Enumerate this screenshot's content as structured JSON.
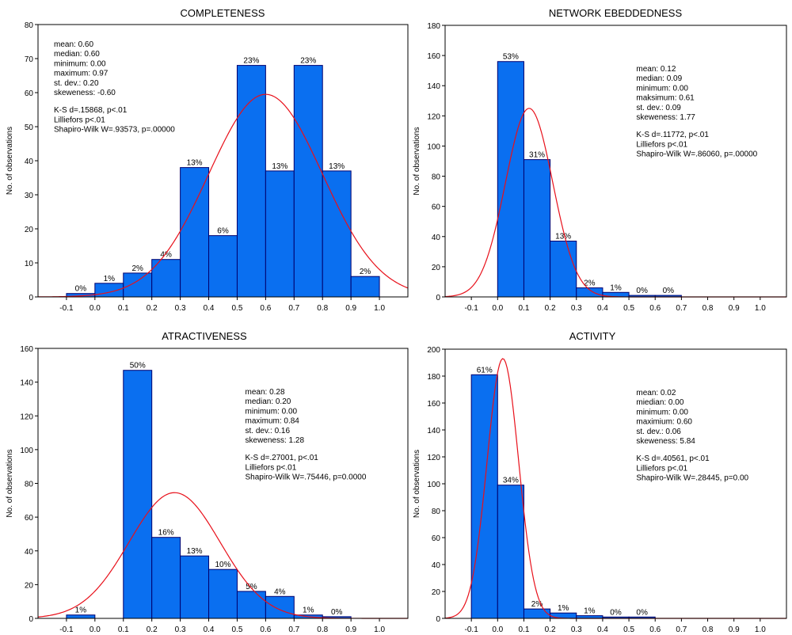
{
  "chart_data": [
    {
      "type": "histogram",
      "title": "COMPLETENESS",
      "ylabel": "No. of observations",
      "xlim": [
        -0.2,
        1.1
      ],
      "ylim": [
        0,
        80
      ],
      "yticks": [
        0,
        10,
        20,
        30,
        40,
        50,
        60,
        70,
        80
      ],
      "xticks": [
        -0.1,
        0.0,
        0.1,
        0.2,
        0.3,
        0.4,
        0.5,
        0.6,
        0.7,
        0.8,
        0.9,
        1.0
      ],
      "xtick_labels": [
        "-0.1",
        "0.0",
        "0.1",
        "0.2",
        "0.3",
        "0.4",
        "0.5",
        "0.6",
        "0.7",
        "0.8",
        "0.9",
        "1.0"
      ],
      "bin_start": -0.1,
      "bin_width": 0.1,
      "values": [
        1,
        4,
        7,
        11,
        38,
        18,
        68,
        37,
        68,
        37,
        6
      ],
      "bar_labels": [
        "0%",
        "1%",
        "2%",
        "4%",
        "13%",
        "6%",
        "23%",
        "13%",
        "23%",
        "13%",
        "2%"
      ],
      "normal_curve": {
        "mean": 0.6,
        "sd": 0.2,
        "peak": 59.5
      },
      "stats_lines": [
        "mean: 0.60",
        "median: 0.60",
        "minimum: 0.00",
        "maximum: 0.97",
        "st. dev.: 0.20",
        "skeweness: -0.60"
      ],
      "test_lines": [
        "K-S d=.15868, p<.01",
        "Lilliefors p<.01",
        "Shapiro-Wilk W=.93573, p=.00000"
      ],
      "stats_anchor": "top-left"
    },
    {
      "type": "histogram",
      "title": "NETWORK EBEDDEDNESS",
      "ylabel": "No. of observations",
      "xlim": [
        -0.2,
        1.1
      ],
      "ylim": [
        0,
        180
      ],
      "yticks": [
        0,
        20,
        40,
        60,
        80,
        100,
        120,
        140,
        160,
        180
      ],
      "xticks": [
        -0.1,
        0.0,
        0.1,
        0.2,
        0.3,
        0.4,
        0.5,
        0.6,
        0.7,
        0.8,
        0.9,
        1.0
      ],
      "xtick_labels": [
        "-0.1",
        "0.0",
        "0.1",
        "0.2",
        "0.3",
        "0.4",
        "0.5",
        "0.6",
        "0.7",
        "0.8",
        "0.9",
        "1.0"
      ],
      "bin_start": 0.0,
      "bin_width": 0.1,
      "values": [
        156,
        91,
        37,
        6,
        3,
        1,
        1
      ],
      "bar_labels": [
        "53%",
        "31%",
        "13%",
        "2%",
        "1%",
        "0%",
        "0%"
      ],
      "normal_curve": {
        "mean": 0.12,
        "sd": 0.09,
        "peak": 125
      },
      "stats_lines": [
        "mean: 0.12",
        "median: 0.09",
        "minimum: 0.00",
        "maksimum: 0.61",
        "st. dev.: 0.09",
        "skeweness: 1.77"
      ],
      "test_lines": [
        "K-S d=.11772, p<.01",
        "Lilliefors p<.01",
        "Shapiro-Wilk W=.86060, p=.00000"
      ],
      "stats_anchor": "top-right"
    },
    {
      "type": "histogram",
      "title": "ATRACTIVENESS",
      "ylabel": "No. of observations",
      "xlim": [
        -0.2,
        1.1
      ],
      "ylim": [
        0,
        160
      ],
      "yticks": [
        0,
        20,
        40,
        60,
        80,
        100,
        120,
        140,
        160
      ],
      "xticks": [
        -0.1,
        0.0,
        0.1,
        0.2,
        0.3,
        0.4,
        0.5,
        0.6,
        0.7,
        0.8,
        0.9,
        1.0
      ],
      "xtick_labels": [
        "-0.1",
        "0.0",
        "0.1",
        "0.2",
        "0.3",
        "0.4",
        "0.5",
        "0.6",
        "0.7",
        "0.8",
        "0.9",
        "1.0"
      ],
      "bin_start": -0.1,
      "bin_width": 0.1,
      "values": [
        2,
        0,
        147,
        48,
        37,
        29,
        16,
        13,
        2,
        1
      ],
      "bar_labels": [
        "1%",
        "",
        "50%",
        "16%",
        "13%",
        "10%",
        "5%",
        "4%",
        "1%",
        "0%"
      ],
      "normal_curve": {
        "mean": 0.28,
        "sd": 0.16,
        "peak": 74.5
      },
      "stats_lines": [
        "mean: 0.28",
        "median: 0.20",
        "minimum: 0.00",
        "maximum: 0.84",
        "st. dev.: 0.16",
        "skeweness: 1.28"
      ],
      "test_lines": [
        "K-S d=.27001, p<.01",
        "Lilliefors p<.01",
        "Shapiro-Wilk W=.75446, p=0.0000"
      ],
      "stats_anchor": "top-right"
    },
    {
      "type": "histogram",
      "title": "ACTIVITY",
      "ylabel": "No. of observations",
      "xlim": [
        -0.2,
        1.1
      ],
      "ylim": [
        0,
        200
      ],
      "yticks": [
        0,
        20,
        40,
        60,
        80,
        100,
        120,
        140,
        160,
        180,
        200
      ],
      "xticks": [
        -0.1,
        0.0,
        0.1,
        0.2,
        0.3,
        0.4,
        0.5,
        0.6,
        0.7,
        0.8,
        0.9,
        1.0
      ],
      "xtick_labels": [
        "-0.1",
        "0.0",
        "0.1",
        "0.2",
        "0.3",
        "0.4",
        "0.5",
        "0.6",
        "0.7",
        "0.8",
        "0.9",
        "1.0"
      ],
      "bin_start": -0.1,
      "bin_width": 0.1,
      "values": [
        181,
        99,
        7,
        4,
        2,
        1,
        1
      ],
      "bar_labels": [
        "61%",
        "34%",
        "2%",
        "1%",
        "1%",
        "0%",
        "0%"
      ],
      "normal_curve": {
        "mean": 0.02,
        "sd": 0.06,
        "peak": 193
      },
      "stats_lines": [
        "mean: 0.02",
        "miedian: 0.00",
        "minimum: 0.00",
        "maximium: 0.60",
        "st. dev.: 0.06",
        "skeweness: 5.84"
      ],
      "test_lines": [
        "K-S d=.40561, p<.01",
        "Lilliefors p<.01",
        "Shapiro-Wilk W=.28445, p=0.00"
      ],
      "stats_anchor": "top-right"
    }
  ],
  "colors": {
    "bar_fill": "#0a6ff0",
    "bar_stroke": "#00006e",
    "curve": "#e8101a",
    "axis": "#000000",
    "text": "#000000"
  }
}
